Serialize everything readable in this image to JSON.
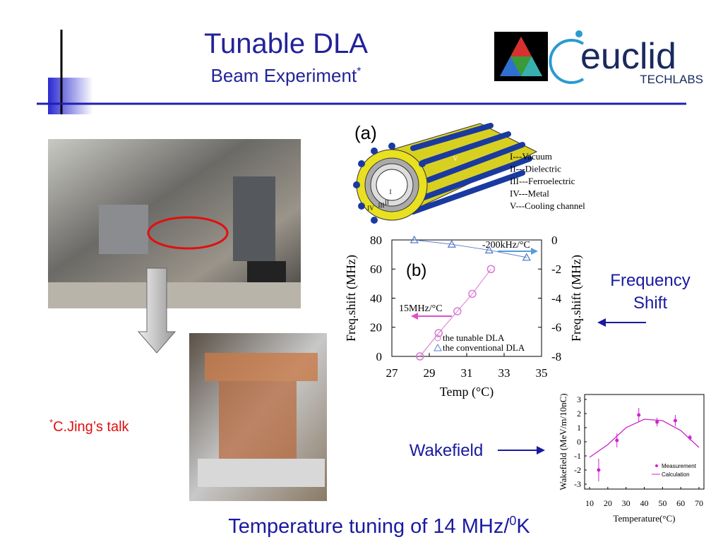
{
  "header": {
    "title": "Tunable DLA",
    "subtitle": "Beam Experiment",
    "subtitle_sup": "*"
  },
  "logo": {
    "name": "euclid",
    "sub": "TECHLABS"
  },
  "diagram": {
    "label": "(a)",
    "layers": [
      "I",
      "II",
      "III",
      "IV",
      "V"
    ],
    "legend": [
      "I---Vacuum",
      "II---Dielectric",
      "III---Ferroelectric",
      "IV---Metal",
      "V---Cooling channel"
    ]
  },
  "chart_data": [
    {
      "type": "scatter",
      "xlabel": "Temp (°C)",
      "ylabel": "Freq.shift (MHz)",
      "y2label": "Freq.shift (MHz)",
      "xlim": [
        27,
        35
      ],
      "xticks": [
        27,
        29,
        31,
        33,
        35
      ],
      "ylim": [
        0,
        80
      ],
      "yticks": [
        0,
        20,
        40,
        60,
        80
      ],
      "y2lim": [
        -8,
        0
      ],
      "y2ticks": [
        0,
        -2,
        -4,
        -6,
        -8
      ],
      "annotations": [
        "(b)",
        "-200kHz/°C",
        "15MHz/°C"
      ],
      "series": [
        {
          "name": "the tunable DLA",
          "color": "#d67ad0",
          "marker": "circle",
          "x": [
            28.5,
            29.5,
            30.5,
            31.3,
            32.3
          ],
          "values": [
            0,
            16,
            31,
            43,
            60
          ]
        },
        {
          "name": "the conventional DLA",
          "color": "#5a7fd0",
          "marker": "triangle",
          "axis": "y2",
          "x": [
            28.2,
            30.2,
            32.2,
            34.2
          ],
          "values": [
            0,
            -0.3,
            -0.7,
            -1.2
          ]
        }
      ]
    },
    {
      "type": "scatter",
      "xlabel": "Temperature(°C)",
      "ylabel": "Wakefield (MeV/m/10nC)",
      "xlim": [
        10,
        70
      ],
      "xticks": [
        10,
        20,
        30,
        40,
        50,
        60,
        70
      ],
      "ylim": [
        -3,
        3
      ],
      "yticks": [
        3,
        2,
        1,
        0,
        -1,
        -2,
        -3
      ],
      "series": [
        {
          "name": "Measurement",
          "color": "#cc22cc",
          "marker": "dot",
          "x": [
            15,
            25,
            37,
            47,
            57,
            65
          ],
          "values": [
            -2,
            0.1,
            1.9,
            1.4,
            1.5,
            0.3
          ],
          "errors": [
            0.8,
            0.5,
            0.5,
            0.3,
            0.4,
            0.2
          ]
        },
        {
          "name": "Calculation",
          "color": "#cc22cc",
          "marker": "line",
          "x": [
            10,
            20,
            30,
            40,
            50,
            60,
            70
          ],
          "values": [
            -1.1,
            -0.2,
            1.0,
            1.6,
            1.5,
            0.8,
            -0.4
          ]
        }
      ]
    }
  ],
  "labels": {
    "frequency_shift": [
      "Frequency",
      "Shift"
    ],
    "wakefield": "Wakefield",
    "note_sup": "*",
    "note": "C.Jing’s talk",
    "footer": "Temperature tuning of 14 MHz/",
    "footer_sup": "0",
    "footer_unit": "K"
  }
}
